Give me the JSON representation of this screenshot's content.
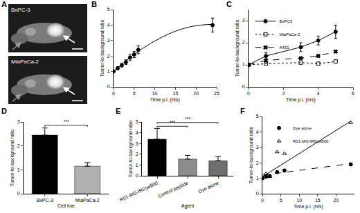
{
  "panel_a": {
    "label": "A",
    "images": [
      "BxPC-3",
      "MiaPaCa-2"
    ]
  },
  "chart_data": [
    {
      "label": "B",
      "type": "scatter",
      "xlabel": "Time p.i. (hrs)",
      "ylabel": "Tumor-to-background ratio",
      "x": [
        0,
        1,
        2,
        3,
        4,
        5,
        6,
        24
      ],
      "series": [
        {
          "values": [
            1.0,
            1.2,
            1.4,
            1.6,
            1.9,
            2.1,
            2.4,
            4.0
          ],
          "errors": [
            0.05,
            0.1,
            0.12,
            0.15,
            0.2,
            0.2,
            0.25,
            0.45
          ],
          "color": "#000000",
          "marker": "circle",
          "line_style": "solid",
          "fit": {
            "x": [
              0,
              2,
              4,
              6,
              8,
              10,
              12,
              14,
              16,
              18,
              20,
              22,
              24
            ],
            "values": [
              1.0,
              1.45,
              1.9,
              2.3,
              2.65,
              2.97,
              3.25,
              3.5,
              3.7,
              3.85,
              3.96,
              4.02,
              4.05
            ]
          }
        }
      ],
      "xlim": [
        0,
        25
      ],
      "xticks": [
        0,
        5,
        10,
        15,
        20,
        25
      ],
      "ylim": [
        0,
        5
      ],
      "yticks": [
        0,
        1,
        2,
        3,
        4,
        5
      ]
    },
    {
      "label": "C",
      "type": "line",
      "xlabel": "Time p.i. (hrs)",
      "ylabel": "Tumor-to-background ratio",
      "x": [
        0,
        1,
        3,
        4,
        5
      ],
      "series": [
        {
          "name": "BxPC3",
          "values": [
            1.0,
            1.4,
            1.8,
            2.1,
            2.5
          ],
          "errors": [
            0.05,
            0.15,
            0.2,
            0.2,
            0.3
          ],
          "color": "#000000",
          "marker": "circle",
          "line_style": "solid"
        },
        {
          "name": "MiaPaCa-2",
          "values": [
            1.0,
            1.05,
            1.1,
            1.05,
            1.15
          ],
          "color": "#000000",
          "marker": "square-open",
          "line_style": "dot"
        },
        {
          "name": "A431",
          "values": [
            1.0,
            1.2,
            1.3,
            1.4,
            1.6
          ],
          "color": "#000000",
          "marker": "x",
          "line_style": "dash"
        }
      ],
      "legend": "top left",
      "xlim": [
        0,
        6
      ],
      "xticks": [
        0,
        2,
        4,
        6
      ],
      "ylim": [
        0,
        3.5
      ],
      "yticks": [
        0,
        1,
        2,
        3
      ]
    },
    {
      "label": "D",
      "type": "bar",
      "xlabel": "Cell line",
      "ylabel": "Tumor-to-background ratio",
      "categories": [
        "BxPC-3",
        "MiaPaCa-2"
      ],
      "values": [
        2.45,
        1.15
      ],
      "errors": [
        0.3,
        0.15
      ],
      "colors": [
        "#000000",
        "#b0b0b0"
      ],
      "ylim": [
        0,
        3
      ],
      "yticks": [
        0,
        1,
        2,
        3
      ],
      "annotations": [
        {
          "text": "***",
          "between": [
            "BxPC-3",
            "MiaPaCa-2"
          ]
        }
      ]
    },
    {
      "label": "E",
      "type": "bar",
      "xlabel": "Agent",
      "ylabel": "Tumor-to-background ratio",
      "categories": [
        "R01-MG-IRDye800",
        "Control peptide",
        "Dye alone"
      ],
      "values": [
        3.4,
        1.55,
        1.4
      ],
      "errors": [
        1.0,
        0.35,
        0.4
      ],
      "colors": [
        "#000000",
        "#8c8c8c",
        "#6e6e6e"
      ],
      "ylim": [
        0,
        5
      ],
      "yticks": [
        0,
        1,
        2,
        3,
        4,
        5
      ],
      "annotations": [
        {
          "text": "***",
          "between": [
            "R01-MG-IRDye800",
            "Control peptide"
          ]
        },
        {
          "text": "***",
          "between": [
            "R01-MG-IRDye800",
            "Dye alone"
          ]
        }
      ]
    },
    {
      "label": "F",
      "type": "scatter",
      "xlabel": "Time p.i. (hrs)",
      "ylabel": "Tumor-to-background ratio",
      "x": [
        0,
        1,
        2,
        4,
        6,
        24
      ],
      "series": [
        {
          "name": "Dye alone",
          "values": [
            1.0,
            1.1,
            1.15,
            1.4,
            1.5,
            1.9
          ],
          "color": "#000000",
          "marker": "circle",
          "line_style": "dash",
          "fit": {
            "x": [
              0,
              24
            ],
            "values": [
              1.2,
              1.95
            ]
          }
        },
        {
          "name": "R01-MG-IRDye800",
          "values": [
            1.0,
            1.3,
            1.1,
            2.7,
            2.6,
            4.6
          ],
          "color": "#000000",
          "marker": "triangle-up-open",
          "line_style": "solid",
          "fit": {
            "x": [
              0,
              24
            ],
            "values": [
              1.1,
              4.7
            ]
          }
        }
      ],
      "legend": "top left",
      "xlim": [
        0,
        25
      ],
      "xticks": [
        0,
        5,
        10,
        15,
        20
      ],
      "ylim": [
        0,
        5
      ],
      "yticks": [
        0,
        1,
        2,
        3,
        4,
        5
      ]
    }
  ]
}
